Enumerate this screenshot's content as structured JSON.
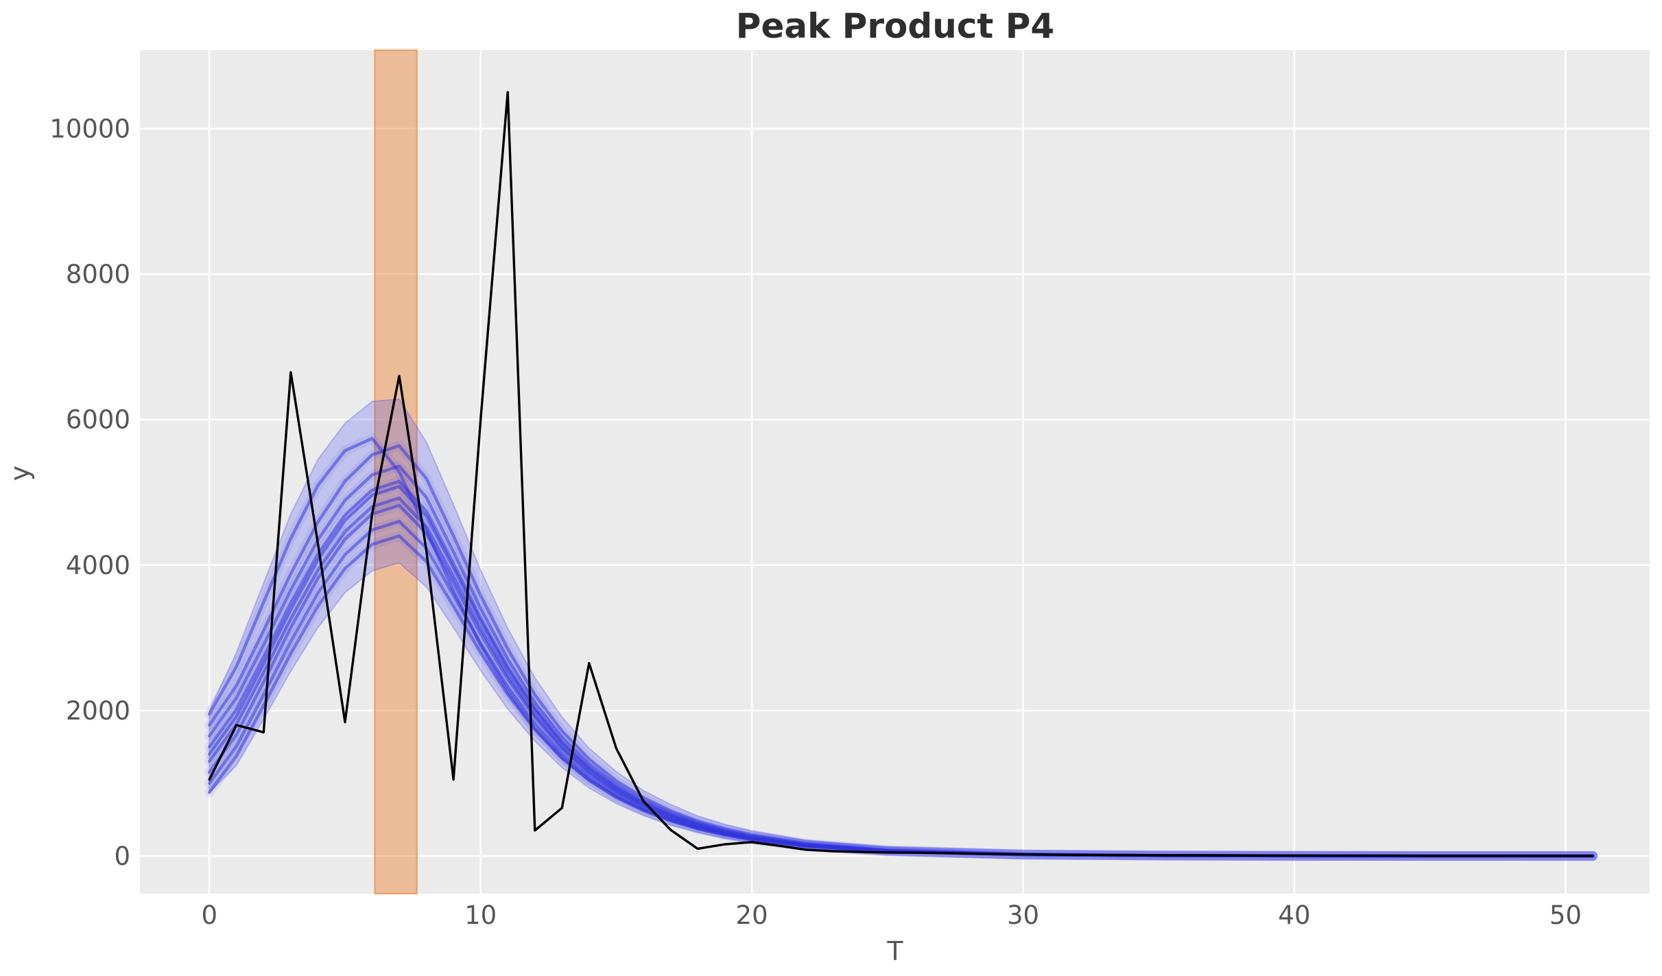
{
  "chart": {
    "title": "Peak Product P4"
  },
  "chart_data": {
    "type": "line",
    "title": "Peak Product P4",
    "xlabel": "T",
    "ylabel": "y",
    "xlim": [
      -2.56,
      53.1
    ],
    "ylim": [
      -519,
      11080
    ],
    "x_ticks": [
      0,
      10,
      20,
      30,
      40,
      50
    ],
    "y_ticks": [
      0,
      2000,
      4000,
      6000,
      8000,
      10000
    ],
    "grid": true,
    "legend": "none",
    "colors": {
      "plot_background": "#ebebeb",
      "grid_line": "#ffffff",
      "observed_line": "#000000",
      "ensemble_line": "#2d2dd7",
      "ensemble_band": "#464aee",
      "highlight_span": "#ee8233",
      "title": "#2e2e2e",
      "tick_label": "#555555"
    },
    "highlight_span": {
      "name": "peak-window",
      "x_start": 6.1,
      "x_end": 7.65,
      "alpha": 0.45
    },
    "observed": {
      "name": "observed-data",
      "x": [
        0,
        1,
        2,
        3,
        4,
        5,
        6,
        7,
        8,
        9,
        10,
        11,
        12,
        13,
        14,
        15,
        16,
        17,
        18,
        19,
        20,
        21,
        22,
        23,
        24,
        25,
        26,
        27,
        28,
        30,
        32,
        35,
        40,
        45,
        51
      ],
      "y": [
        1050,
        1800,
        1700,
        6650,
        4300,
        1840,
        4700,
        6600,
        4200,
        1050,
        6000,
        10500,
        350,
        660,
        2650,
        1480,
        755,
        360,
        100,
        160,
        190,
        140,
        85,
        65,
        55,
        48,
        45,
        40,
        32,
        22,
        15,
        10,
        5,
        2,
        1
      ]
    },
    "ensemble": {
      "name": "model-trajectories",
      "t": [
        0,
        1,
        2,
        3,
        4,
        5,
        6,
        7,
        8,
        9,
        10,
        11,
        12,
        13,
        14,
        15,
        16,
        17,
        18,
        19,
        20,
        22,
        25,
        30,
        35,
        40,
        45,
        51
      ],
      "trajectories": [
        [
          1950,
          2604,
          3489,
          4365,
          5094,
          5573,
          5740,
          5281,
          4477,
          3645,
          2899,
          2267,
          1751,
          1355,
          1050,
          815,
          632,
          488,
          378,
          293,
          227,
          136,
          63,
          18,
          5,
          1,
          0,
          0
        ],
        [
          1800,
          2344,
          3097,
          3878,
          4588,
          5153,
          5515,
          5640,
          5189,
          4399,
          3581,
          2848,
          2216,
          1720,
          1331,
          1032,
          801,
          620,
          479,
          372,
          288,
          172,
          80,
          22,
          6,
          2,
          0,
          0
        ],
        [
          1650,
          2176,
          2903,
          3658,
          4344,
          4890,
          5239,
          5360,
          4931,
          4181,
          3404,
          2707,
          2107,
          1635,
          1265,
          981,
          761,
          590,
          455,
          353,
          274,
          163,
          76,
          21,
          6,
          2,
          0,
          0
        ],
        [
          1500,
          2017,
          2733,
          3475,
          4150,
          4687,
          5031,
          5150,
          4738,
          4017,
          3270,
          2601,
          2034,
          1571,
          1215,
          942,
          731,
          567,
          437,
          339,
          263,
          157,
          73,
          20,
          5,
          1,
          0,
          0
        ],
        [
          1400,
          1921,
          2643,
          3391,
          4072,
          4613,
          4960,
          5080,
          4674,
          3962,
          3226,
          2565,
          2007,
          1549,
          1199,
          930,
          721,
          559,
          431,
          335,
          260,
          155,
          72,
          20,
          5,
          1,
          0,
          0
        ],
        [
          1300,
          1813,
          2523,
          3259,
          3928,
          4461,
          4802,
          4920,
          4526,
          3838,
          3124,
          2485,
          1943,
          1501,
          1161,
          900,
          699,
          541,
          418,
          324,
          251,
          150,
          70,
          19,
          5,
          1,
          0,
          0
        ],
        [
          1150,
          1670,
          2390,
          3136,
          3815,
          4354,
          4701,
          4820,
          4434,
          3760,
          3060,
          2434,
          1904,
          1470,
          1138,
          882,
          684,
          530,
          409,
          317,
          246,
          147,
          68,
          18,
          5,
          1,
          0,
          0
        ],
        [
          1000,
          1510,
          2216,
          2948,
          3614,
          4144,
          4483,
          4600,
          4232,
          3588,
          2921,
          2323,
          1817,
          1403,
          1086,
          842,
          653,
          506,
          391,
          303,
          235,
          140,
          65,
          18,
          5,
          1,
          0,
          0
        ],
        [
          875,
          1375,
          2066,
          2782,
          3435,
          3953,
          4285,
          4400,
          4048,
          3432,
          2794,
          2222,
          1738,
          1342,
          1039,
          805,
          625,
          484,
          374,
          290,
          224,
          134,
          62,
          17,
          5,
          1,
          0,
          0
        ]
      ],
      "band_top": [
        2000,
        2800,
        3750,
        4700,
        5450,
        5950,
        6250,
        6280,
        5690,
        4830,
        3930,
        3130,
        2450,
        1910,
        1480,
        1160,
        900,
        710,
        550,
        435,
        345,
        215,
        115,
        42,
        14,
        5,
        2,
        1
      ],
      "band_bottom": [
        870,
        1245,
        1880,
        2540,
        3140,
        3620,
        3920,
        4030,
        3700,
        3140,
        2550,
        2020,
        1580,
        1215,
        935,
        720,
        555,
        425,
        325,
        245,
        185,
        105,
        45,
        10,
        3,
        1,
        0,
        0
      ]
    }
  }
}
